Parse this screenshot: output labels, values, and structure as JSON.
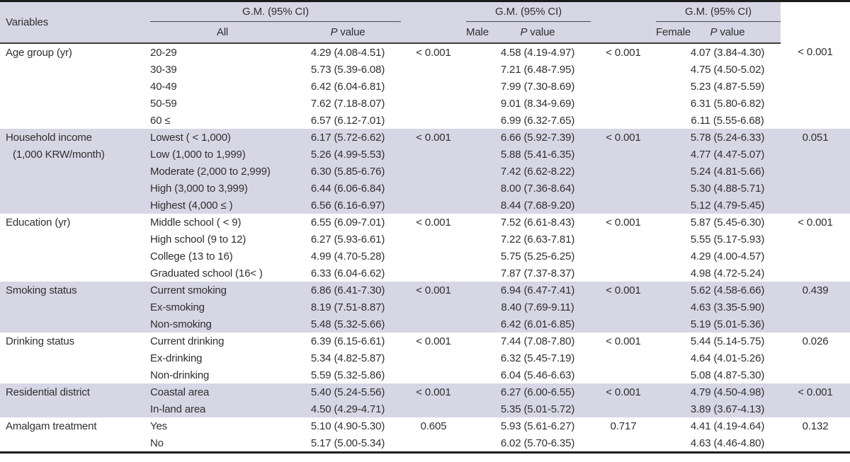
{
  "table": {
    "header": {
      "variables_label": "Variables",
      "group_header": "G.M. (95% CI)",
      "groups": [
        "All",
        "Male",
        "Female"
      ],
      "p_value_label": {
        "italic": "P",
        "rest": " value"
      }
    },
    "colors": {
      "band": "#d7d6e5",
      "rule_dark": "#1c1c1c",
      "text": "#2f2f2f"
    },
    "sections": [
      {
        "variable_lines": [
          "Age group (yr)"
        ],
        "shaded": false,
        "p_all": "< 0.001",
        "p_male": "< 0.001",
        "p_female": "< 0.001",
        "rows": [
          {
            "category": "20-29",
            "all": "4.29 (4.08-4.51)",
            "male": "4.58 (4.19-4.97)",
            "female": "4.07 (3.84-4.30)"
          },
          {
            "category": "30-39",
            "all": "5.73 (5.39-6.08)",
            "male": "7.21 (6.48-7.95)",
            "female": "4.75 (4.50-5.02)"
          },
          {
            "category": "40-49",
            "all": "6.42 (6.04-6.81)",
            "male": "7.99 (7.30-8.69)",
            "female": "5.23 (4.87-5.59)"
          },
          {
            "category": "50-59",
            "all": "7.62 (7.18-8.07)",
            "male": "9.01 (8.34-9.69)",
            "female": "6.31 (5.80-6.82)"
          },
          {
            "category": "60 ≤",
            "all": "6.57 (6.12-7.01)",
            "male": "6.99 (6.32-7.65)",
            "female": "6.11 (5.55-6.68)"
          }
        ]
      },
      {
        "variable_lines": [
          "Household income",
          "(1,000 KRW/month)"
        ],
        "shaded": true,
        "p_all": "< 0.001",
        "p_male": "< 0.001",
        "p_female": "0.051",
        "rows": [
          {
            "category": "Lowest ( < 1,000)",
            "all": "6.17 (5.72-6.62)",
            "male": "6.66 (5.92-7.39)",
            "female": "5.78 (5.24-6.33)"
          },
          {
            "category": "Low (1,000 to 1,999)",
            "all": "5.26 (4.99-5.53)",
            "male": "5.88 (5.41-6.35)",
            "female": "4.77 (4.47-5.07)"
          },
          {
            "category": "Moderate (2,000 to 2,999)",
            "all": "6.30 (5.85-6.76)",
            "male": "7.42 (6.62-8.22)",
            "female": "5.24 (4.81-5.66)"
          },
          {
            "category": "High (3,000 to 3,999)",
            "all": "6.44 (6.06-6.84)",
            "male": "8.00 (7.36-8.64)",
            "female": "5.30 (4.88-5.71)"
          },
          {
            "category": "Highest (4,000 ≤ )",
            "all": "6.56 (6.16-6.97)",
            "male": "8.44 (7.68-9.20)",
            "female": "5.12 (4.79-5.45)"
          }
        ]
      },
      {
        "variable_lines": [
          "Education (yr)"
        ],
        "shaded": false,
        "p_all": "< 0.001",
        "p_male": "< 0.001",
        "p_female": "< 0.001",
        "rows": [
          {
            "category": "Middle school ( < 9)",
            "all": "6.55 (6.09-7.01)",
            "male": "7.52 (6.61-8.43)",
            "female": "5.87 (5.45-6.30)"
          },
          {
            "category": "High school (9 to 12)",
            "all": "6.27 (5.93-6.61)",
            "male": "7.22 (6.63-7.81)",
            "female": "5.55 (5.17-5.93)"
          },
          {
            "category": "College (13 to 16)",
            "all": "4.99 (4.70-5.28)",
            "male": "5.75 (5.25-6.25)",
            "female": "4.29 (4.00-4.57)"
          },
          {
            "category": "Graduated school (16< )",
            "all": "6.33 (6.04-6.62)",
            "male": "7.87 (7.37-8.37)",
            "female": "4.98 (4.72-5.24)"
          }
        ]
      },
      {
        "variable_lines": [
          "Smoking status"
        ],
        "shaded": true,
        "p_all": "< 0.001",
        "p_male": "< 0.001",
        "p_female": "0.439",
        "rows": [
          {
            "category": "Current smoking",
            "all": "6.86 (6.41-7.30)",
            "male": "6.94 (6.47-7.41)",
            "female": "5.62 (4.58-6.66)"
          },
          {
            "category": "Ex-smoking",
            "all": "8.19 (7.51-8.87)",
            "male": "8.40 (7.69-9.11)",
            "female": "4.63 (3.35-5.90)"
          },
          {
            "category": "Non-smoking",
            "all": "5.48 (5.32-5.66)",
            "male": "6.42 (6.01-6.85)",
            "female": "5.19 (5.01-5.36)"
          }
        ]
      },
      {
        "variable_lines": [
          "Drinking status"
        ],
        "shaded": false,
        "p_all": "< 0.001",
        "p_male": "< 0.001",
        "p_female": "0.026",
        "rows": [
          {
            "category": "Current drinking",
            "all": "6.39 (6.15-6.61)",
            "male": "7.44 (7.08-7.80)",
            "female": "5.44 (5.14-5.75)"
          },
          {
            "category": "Ex-drinking",
            "all": "5.34 (4.82-5.87)",
            "male": "6.32 (5.45-7.19)",
            "female": "4.64 (4.01-5.26)"
          },
          {
            "category": "Non-drinking",
            "all": "5.59 (5.32-5.86)",
            "male": "6.04 (5.46-6.63)",
            "female": "5.08 (4.87-5.30)"
          }
        ]
      },
      {
        "variable_lines": [
          "Residential district"
        ],
        "shaded": true,
        "p_all": "< 0.001",
        "p_male": "< 0.001",
        "p_female": "< 0.001",
        "rows": [
          {
            "category": "Coastal area",
            "all": "5.40 (5.24-5.56)",
            "male": "6.27 (6.00-6.55)",
            "female": "4.79 (4.50-4.98)"
          },
          {
            "category": "In-land area",
            "all": "4.50 (4.29-4.71)",
            "male": "5.35 (5.01-5.72)",
            "female": "3.89 (3.67-4.13)"
          }
        ]
      },
      {
        "variable_lines": [
          "Amalgam treatment"
        ],
        "shaded": false,
        "p_all": "0.605",
        "p_male": "0.717",
        "p_female": "0.132",
        "rows": [
          {
            "category": "Yes",
            "all": "5.10 (4.90-5.30)",
            "male": "5.93 (5.61-6.27)",
            "female": "4.41 (4.19-4.64)"
          },
          {
            "category": "No",
            "all": "5.17 (5.00-5.34)",
            "male": "6.02 (5.70-6.35)",
            "female": "4.63 (4.46-4.80)"
          }
        ]
      }
    ]
  }
}
